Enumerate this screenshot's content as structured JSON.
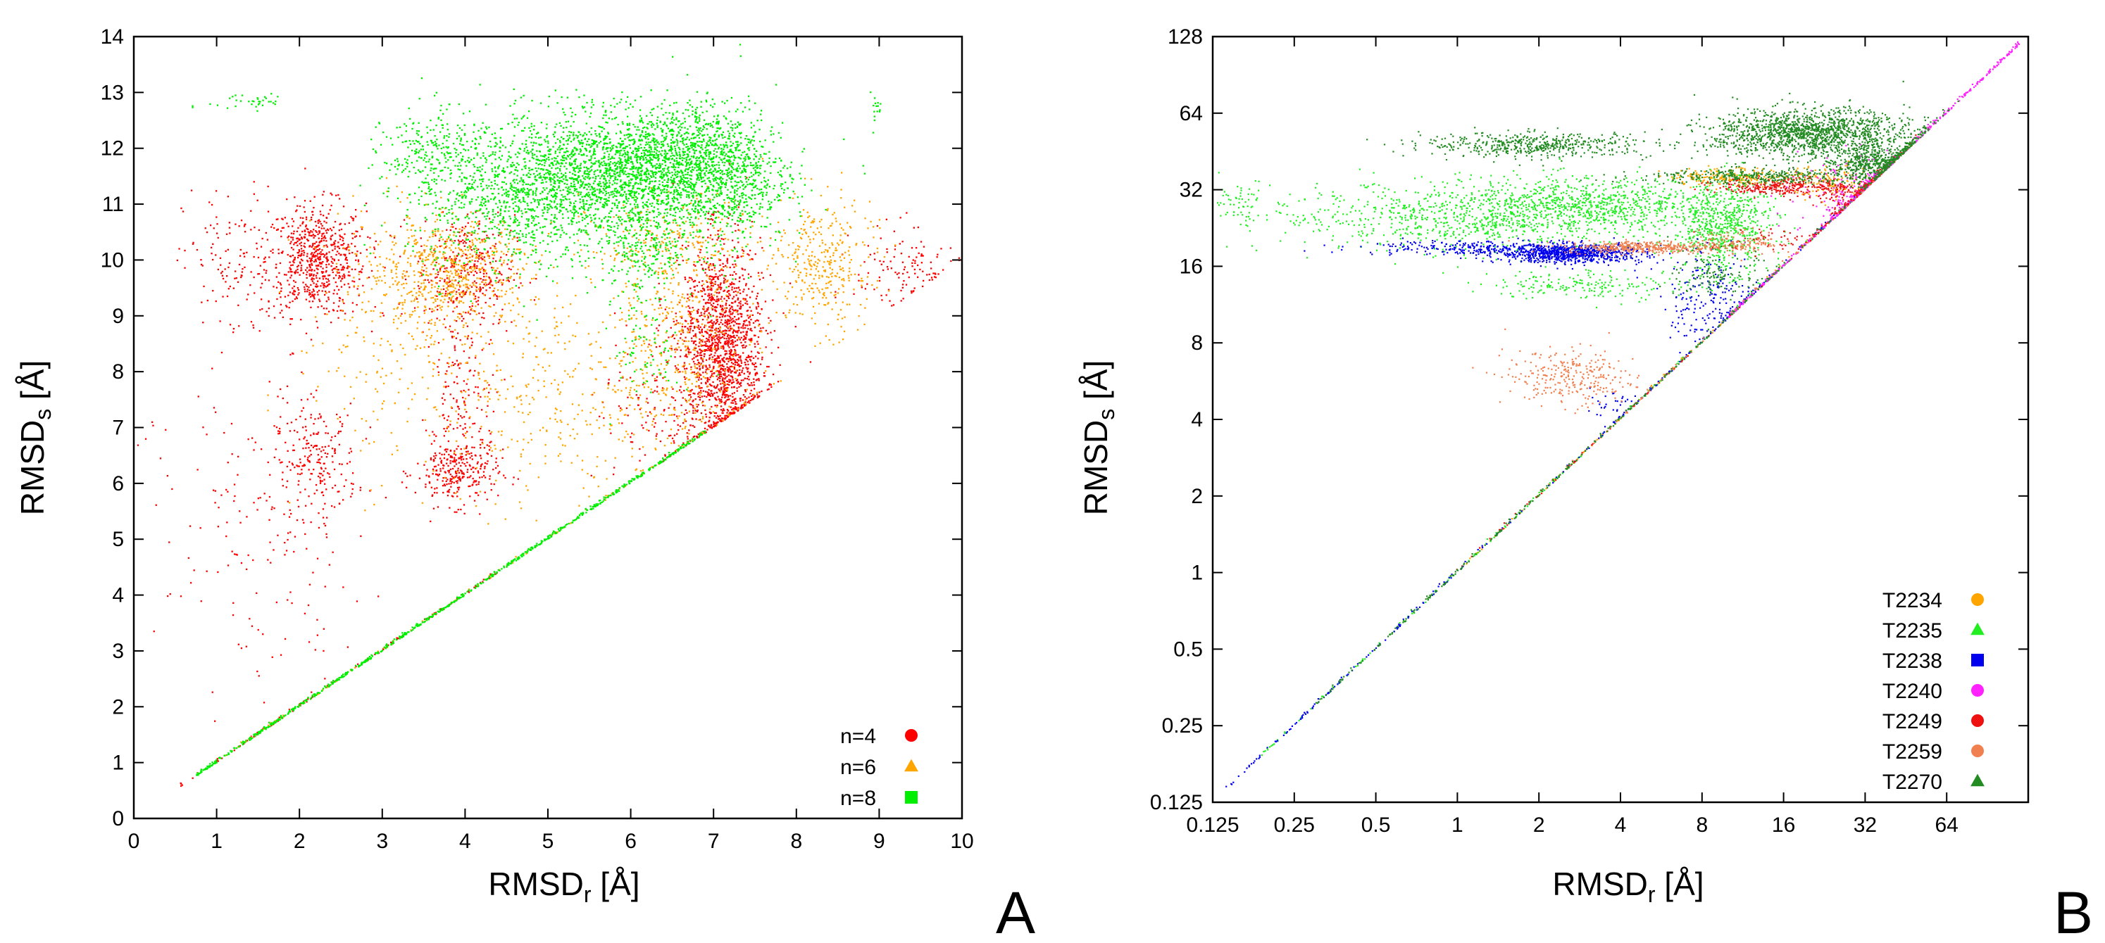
{
  "chart_data": [
    {
      "panel": "A",
      "type": "scatter",
      "xlabel": "RMSD",
      "xlabel_sub": "r",
      "xlabel_unit": " [Å]",
      "ylabel": "RMSD",
      "ylabel_sub": "s",
      "ylabel_unit": " [Å]",
      "xlim": [
        0,
        10
      ],
      "ylim": [
        0,
        14
      ],
      "x_ticks": [
        0,
        1,
        2,
        3,
        4,
        5,
        6,
        7,
        8,
        9,
        10
      ],
      "y_ticks": [
        0,
        1,
        2,
        3,
        4,
        5,
        6,
        7,
        8,
        9,
        10,
        11,
        12,
        13,
        14
      ],
      "legend_position": "bottom-right",
      "series": [
        {
          "name": "n=4",
          "color": "#ff0000",
          "marker": "circle",
          "diagonal": {
            "x_range": [
              0.55,
              4.4
            ],
            "n": 120
          },
          "clusters": [
            {
              "cx": 2.2,
              "cy": 10.0,
              "sx": 0.3,
              "sy": 0.5,
              "n": 700
            },
            {
              "cx": 1.2,
              "cy": 9.9,
              "sx": 0.3,
              "sy": 0.7,
              "n": 120
            },
            {
              "cx": 2.2,
              "cy": 6.4,
              "sx": 0.25,
              "sy": 0.5,
              "n": 220
            },
            {
              "cx": 3.9,
              "cy": 6.2,
              "sx": 0.25,
              "sy": 0.3,
              "n": 280
            },
            {
              "cx": 4.0,
              "cy": 9.8,
              "sx": 0.3,
              "sy": 0.5,
              "n": 350
            },
            {
              "cx": 7.1,
              "cy": 8.5,
              "sx": 0.25,
              "sy": 0.9,
              "n": 1500
            },
            {
              "cx": 9.3,
              "cy": 9.8,
              "sx": 0.3,
              "sy": 0.4,
              "n": 120
            },
            {
              "cx": 1.5,
              "cy": 5.0,
              "sx": 0.6,
              "sy": 1.5,
              "n": 160
            },
            {
              "cx": 4.0,
              "cy": 7.6,
              "sx": 0.2,
              "sy": 0.7,
              "n": 150
            },
            {
              "cx": 6.4,
              "cy": 7.5,
              "sx": 0.4,
              "sy": 0.8,
              "n": 160
            }
          ]
        },
        {
          "name": "n=6",
          "color": "#ffa500",
          "marker": "triangle",
          "diagonal": {
            "x_range": [
              1.0,
              6.2
            ],
            "n": 80
          },
          "clusters": [
            {
              "cx": 3.8,
              "cy": 9.8,
              "sx": 0.5,
              "sy": 0.5,
              "n": 650
            },
            {
              "cx": 5.0,
              "cy": 7.6,
              "sx": 1.0,
              "sy": 1.0,
              "n": 450
            },
            {
              "cx": 6.6,
              "cy": 8.6,
              "sx": 0.4,
              "sy": 1.0,
              "n": 400
            },
            {
              "cx": 8.3,
              "cy": 9.9,
              "sx": 0.3,
              "sy": 0.6,
              "n": 350
            },
            {
              "cx": 3.0,
              "cy": 8.6,
              "sx": 0.5,
              "sy": 1.1,
              "n": 160
            },
            {
              "cx": 6.5,
              "cy": 10.3,
              "sx": 0.5,
              "sy": 0.4,
              "n": 220
            }
          ]
        },
        {
          "name": "n=8",
          "color": "#00ee00",
          "marker": "square",
          "diagonal": {
            "x_range": [
              0.7,
              6.9
            ],
            "n": 700
          },
          "clusters": [
            {
              "cx": 5.6,
              "cy": 11.5,
              "sx": 0.9,
              "sy": 0.55,
              "n": 2200
            },
            {
              "cx": 6.5,
              "cy": 11.8,
              "sx": 0.5,
              "sy": 0.5,
              "n": 900
            },
            {
              "cx": 7.2,
              "cy": 11.5,
              "sx": 0.35,
              "sy": 0.6,
              "n": 550
            },
            {
              "cx": 4.5,
              "cy": 10.8,
              "sx": 0.6,
              "sy": 0.6,
              "n": 450
            },
            {
              "cx": 6.2,
              "cy": 10.2,
              "sx": 0.3,
              "sy": 0.4,
              "n": 250
            },
            {
              "cx": 6.2,
              "cy": 8.4,
              "sx": 0.2,
              "sy": 0.5,
              "n": 80
            },
            {
              "cx": 1.4,
              "cy": 12.85,
              "sx": 0.25,
              "sy": 0.1,
              "n": 35
            },
            {
              "cx": 8.95,
              "cy": 12.7,
              "sx": 0.05,
              "sy": 0.15,
              "n": 15
            },
            {
              "cx": 3.6,
              "cy": 11.9,
              "sx": 0.3,
              "sy": 0.4,
              "n": 220
            }
          ]
        }
      ]
    },
    {
      "panel": "B",
      "type": "scatter",
      "scale": "log2",
      "xlabel": "RMSD",
      "xlabel_sub": "r",
      "xlabel_unit": " [Å]",
      "ylabel": "RMSD",
      "ylabel_sub": "s",
      "ylabel_unit": " [Å]",
      "xlim": [
        0.125,
        128
      ],
      "ylim": [
        0.125,
        128
      ],
      "x_ticks": [
        0.125,
        0.25,
        0.5,
        1,
        2,
        4,
        8,
        16,
        32,
        64
      ],
      "x_tick_labels": [
        "0.125",
        "0.25",
        "0.5",
        "1",
        "2",
        "4",
        "8",
        "16",
        "32",
        "64"
      ],
      "y_ticks": [
        0.125,
        0.25,
        0.5,
        1,
        2,
        4,
        8,
        16,
        32,
        64,
        128
      ],
      "y_tick_labels": [
        "0.125",
        "0.25",
        "0.5",
        "1",
        "2",
        "4",
        "8",
        "16",
        "32",
        "64",
        "128"
      ],
      "legend_position": "bottom-right",
      "series": [
        {
          "name": "T2234",
          "color": "#ffa500",
          "marker": "circle",
          "diagonal": {
            "x_range": [
              1,
              60
            ],
            "n": 120
          },
          "clusters": [
            {
              "cx": 11,
              "cy": 36,
              "sx": 0.45,
              "sy": 0.06,
              "n": 220
            },
            {
              "cx": 24,
              "cy": 34,
              "sx": 0.25,
              "sy": 0.12,
              "n": 120
            }
          ]
        },
        {
          "name": "T2235",
          "color": "#22ee22",
          "marker": "triangle",
          "diagonal": {
            "x_range": [
              0.18,
              40
            ],
            "n": 160
          },
          "clusters": [
            {
              "cx": 1.2,
              "cy": 25,
              "sx": 1.3,
              "sy": 0.22,
              "n": 900
            },
            {
              "cx": 3.0,
              "cy": 28,
              "sx": 0.8,
              "sy": 0.18,
              "n": 700
            },
            {
              "cx": 9.5,
              "cy": 23,
              "sx": 0.3,
              "sy": 0.3,
              "n": 650
            },
            {
              "cx": 3.0,
              "cy": 13.5,
              "sx": 0.6,
              "sy": 0.1,
              "n": 180
            },
            {
              "cx": 0.15,
              "cy": 29,
              "sx": 0.15,
              "sy": 0.12,
              "n": 50
            }
          ]
        },
        {
          "name": "T2238",
          "color": "#0000ee",
          "marker": "square",
          "diagonal": {
            "x_range": [
              0.14,
              30
            ],
            "n": 220
          },
          "clusters": [
            {
              "cx": 2.6,
              "cy": 18,
              "sx": 0.45,
              "sy": 0.06,
              "n": 900
            },
            {
              "cx": 8.5,
              "cy": 12,
              "sx": 0.3,
              "sy": 0.3,
              "n": 200
            },
            {
              "cx": 1.0,
              "cy": 19,
              "sx": 0.6,
              "sy": 0.05,
              "n": 200
            },
            {
              "cx": 3.6,
              "cy": 4.5,
              "sx": 0.2,
              "sy": 0.15,
              "n": 35
            }
          ]
        },
        {
          "name": "T2240",
          "color": "#ff22ff",
          "marker": "circle",
          "diagonal": {
            "x_range": [
              10,
              120
            ],
            "n": 400
          },
          "clusters": [
            {
              "cx": 30,
              "cy": 28,
              "sx": 0.35,
              "sy": 0.3,
              "n": 300
            }
          ]
        },
        {
          "name": "T2249",
          "color": "#ee1111",
          "marker": "circle",
          "diagonal": {
            "x_range": [
              0.8,
              50
            ],
            "n": 80
          },
          "clusters": [
            {
              "cx": 16,
              "cy": 33,
              "sx": 0.4,
              "sy": 0.06,
              "n": 300
            },
            {
              "cx": 30,
              "cy": 30,
              "sx": 0.25,
              "sy": 0.12,
              "n": 150
            },
            {
              "cx": 14,
              "cy": 20,
              "sx": 0.35,
              "sy": 0.08,
              "n": 60
            }
          ]
        },
        {
          "name": "T2259",
          "color": "#f08050",
          "marker": "circle",
          "diagonal": {
            "x_range": [
              2,
              40
            ],
            "n": 80
          },
          "clusters": [
            {
              "cx": 5,
              "cy": 19,
              "sx": 0.5,
              "sy": 0.04,
              "n": 400
            },
            {
              "cx": 2.6,
              "cy": 5.8,
              "sx": 0.4,
              "sy": 0.18,
              "n": 280
            },
            {
              "cx": 11,
              "cy": 20,
              "sx": 0.25,
              "sy": 0.08,
              "n": 120
            }
          ]
        },
        {
          "name": "T2270",
          "color": "#228b22",
          "marker": "triangle",
          "diagonal": {
            "x_range": [
              0.3,
              55
            ],
            "n": 300
          },
          "clusters": [
            {
              "cx": 20,
              "cy": 53,
              "sx": 0.6,
              "sy": 0.16,
              "n": 1500
            },
            {
              "cx": 2.0,
              "cy": 48,
              "sx": 0.7,
              "sy": 0.08,
              "n": 500
            },
            {
              "cx": 35,
              "cy": 40,
              "sx": 0.25,
              "sy": 0.12,
              "n": 500
            },
            {
              "cx": 13,
              "cy": 36,
              "sx": 0.7,
              "sy": 0.05,
              "n": 350
            },
            {
              "cx": 9,
              "cy": 15,
              "sx": 0.25,
              "sy": 0.15,
              "n": 120
            }
          ]
        }
      ]
    }
  ],
  "panel_labels": {
    "a": "A",
    "b": "B"
  }
}
